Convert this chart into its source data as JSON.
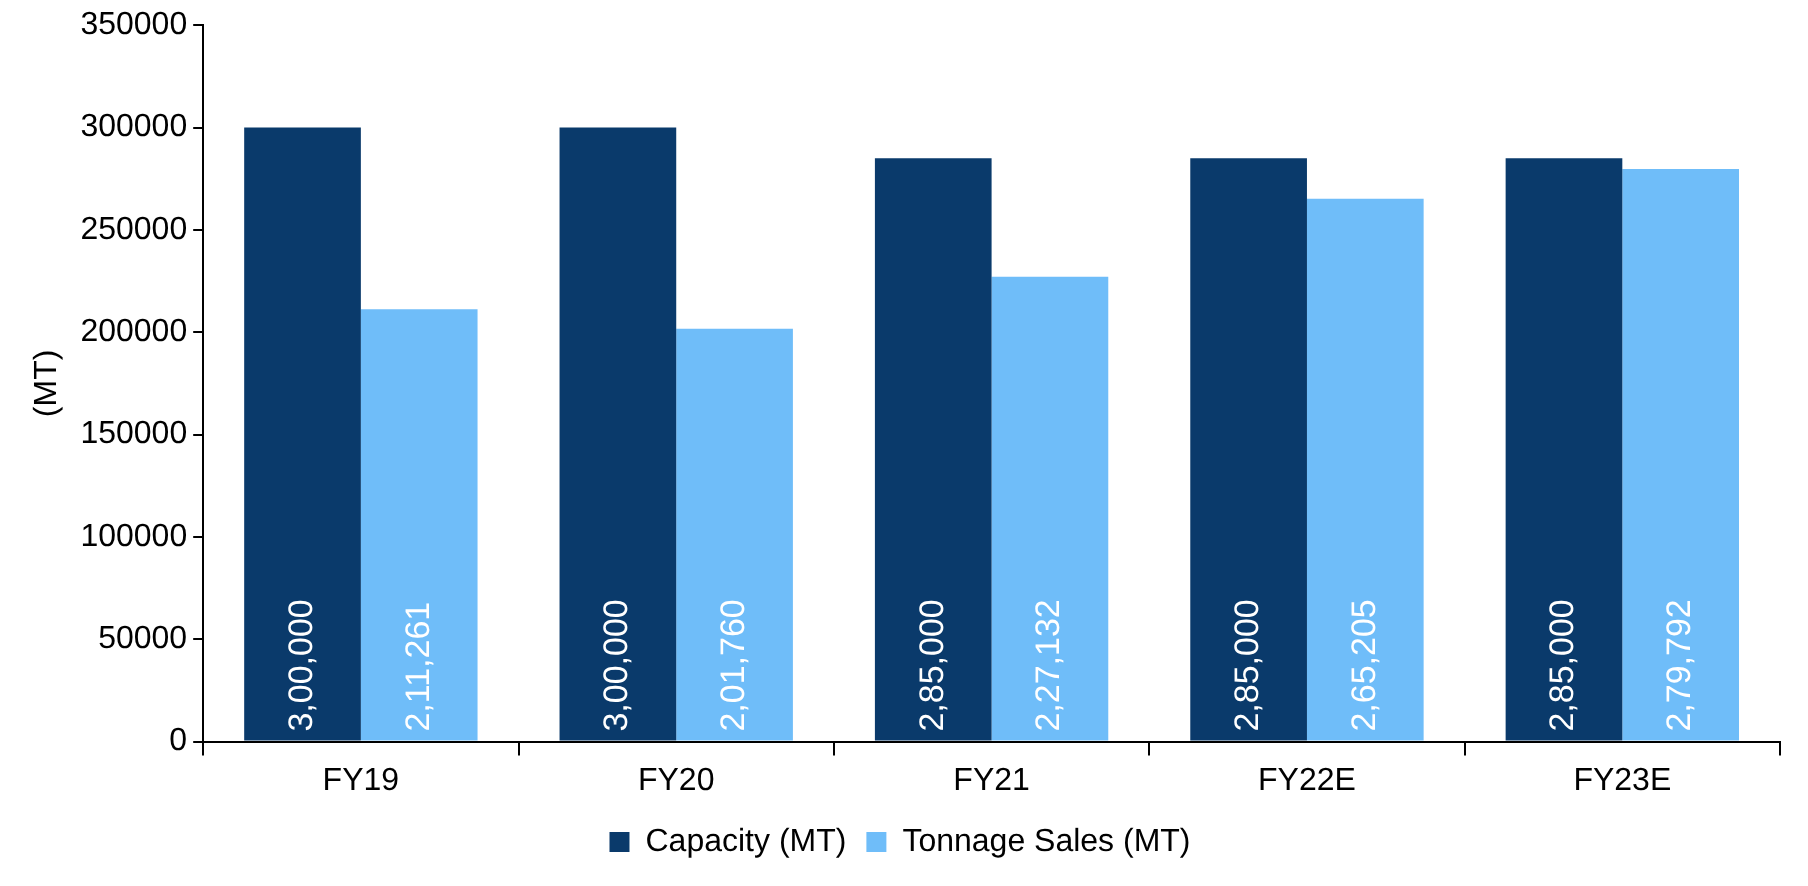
{
  "chart_data": {
    "type": "bar",
    "ylabel": "(MT)",
    "categories": [
      "FY19",
      "FY20",
      "FY21",
      "FY22E",
      "FY23E"
    ],
    "series": [
      {
        "name": "Capacity (MT)",
        "color": "#0a3a6b",
        "values": [
          300000,
          300000,
          285000,
          285000,
          285000
        ],
        "value_labels": [
          "3,00,000",
          "3,00,000",
          "2,85,000",
          "2,85,000",
          "2,85,000"
        ]
      },
      {
        "name": "Tonnage Sales (MT)",
        "color": "#6fbdf9",
        "values": [
          211261,
          201760,
          227132,
          265205,
          279792
        ],
        "value_labels": [
          "2,11,261",
          "2,01,760",
          "2,27,132",
          "2,65,205",
          "2,79,792"
        ]
      }
    ],
    "ylim": [
      0,
      350000
    ],
    "yticks": [
      0,
      50000,
      100000,
      150000,
      200000,
      250000,
      300000,
      350000
    ],
    "grid": false,
    "legend": "bottom"
  }
}
